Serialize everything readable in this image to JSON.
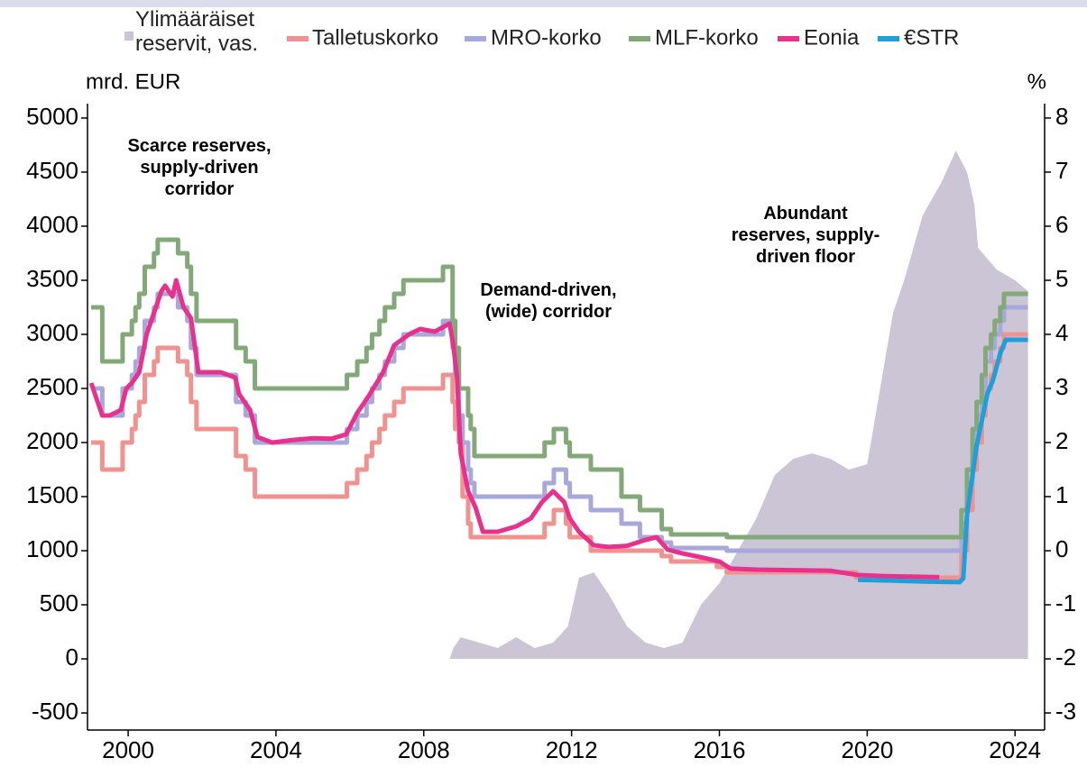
{
  "chart_data": {
    "type": "line",
    "y_label": "mrd. EUR",
    "y2_label": "%",
    "xlim": [
      1998.9,
      2024.8
    ],
    "xticks": [
      2000,
      2004,
      2008,
      2012,
      2016,
      2020,
      2024
    ],
    "ylim": [
      -658,
      5133
    ],
    "yticks": [
      -500,
      0,
      500,
      1000,
      1500,
      2000,
      2500,
      3000,
      3500,
      4000,
      4500,
      5000
    ],
    "y2lim": [
      -3.316,
      8.266
    ],
    "y2ticks": [
      -3,
      -2,
      -1,
      0,
      1,
      2,
      3,
      4,
      5,
      6,
      7,
      8
    ],
    "annotations": [
      [
        "Scarce reserves,",
        "supply-driven",
        "corridor"
      ],
      [
        "Demand-driven,",
        "(wide) corridor"
      ],
      [
        "Abundant",
        "reserves, supply-",
        "driven floor"
      ]
    ],
    "series": [
      {
        "name": "Ylimääräiset reservit, vas.",
        "kind": "area",
        "color": "#cbc5d5",
        "x": [
          1999.0,
          2008.7,
          2008.8,
          2009.0,
          2009.5,
          2010.0,
          2010.5,
          2011.0,
          2011.5,
          2011.9,
          2012.2,
          2012.6,
          2013.0,
          2013.5,
          2014.0,
          2014.5,
          2015.0,
          2015.5,
          2016.0,
          2016.5,
          2017.0,
          2017.5,
          2018.0,
          2018.5,
          2019.0,
          2019.5,
          2020.0,
          2020.3,
          2020.7,
          2021.0,
          2021.5,
          2022.0,
          2022.4,
          2022.7,
          2022.9,
          2023.0,
          2023.5,
          2024.0,
          2024.35
        ],
        "values": [
          0,
          0,
          100,
          200,
          150,
          100,
          200,
          100,
          150,
          300,
          750,
          800,
          600,
          300,
          150,
          100,
          150,
          500,
          700,
          1000,
          1300,
          1700,
          1850,
          1900,
          1850,
          1750,
          1800,
          2400,
          3200,
          3500,
          4100,
          4400,
          4700,
          4500,
          4200,
          3800,
          3600,
          3500,
          3400
        ]
      },
      {
        "name": "Talletuskorko",
        "axis": "y2",
        "step": true,
        "color": "#f0928f",
        "x": [
          1999.0,
          1999.3,
          1999.85,
          2000.1,
          2000.2,
          2000.3,
          2000.45,
          2000.7,
          2000.8,
          2001.35,
          2001.6,
          2001.7,
          2001.85,
          2002.92,
          2003.18,
          2003.43,
          2005.92,
          2006.2,
          2006.45,
          2006.6,
          2006.8,
          2006.95,
          2007.2,
          2007.45,
          2008.52,
          2008.78,
          2008.85,
          2008.95,
          2009.05,
          2009.2,
          2009.27,
          2011.27,
          2011.52,
          2011.85,
          2011.95,
          2012.52,
          2014.44,
          2014.69,
          2015.93,
          2016.2,
          2019.7,
          2022.55,
          2022.7,
          2022.85,
          2022.96,
          2023.1,
          2023.2,
          2023.35,
          2023.45,
          2023.6,
          2023.7,
          2024.35
        ],
        "values": [
          2.0,
          1.5,
          2.0,
          2.25,
          2.5,
          2.75,
          3.25,
          3.5,
          3.75,
          3.5,
          3.25,
          2.75,
          2.25,
          1.75,
          1.5,
          1.0,
          1.25,
          1.5,
          1.75,
          2.0,
          2.25,
          2.5,
          2.75,
          3.0,
          3.25,
          2.75,
          2.25,
          2.0,
          1.0,
          0.5,
          0.25,
          0.5,
          0.75,
          0.5,
          0.25,
          0.0,
          -0.1,
          -0.2,
          -0.3,
          -0.4,
          -0.5,
          0.0,
          0.75,
          1.5,
          2.0,
          2.5,
          3.0,
          3.25,
          3.5,
          3.75,
          4.0,
          4.0
        ]
      },
      {
        "name": "MRO-korko",
        "axis": "y2",
        "step": true,
        "color": "#a6a9d9",
        "x": [
          1999.0,
          1999.3,
          1999.85,
          2000.1,
          2000.2,
          2000.3,
          2000.45,
          2000.7,
          2000.8,
          2001.35,
          2001.6,
          2001.7,
          2001.85,
          2002.92,
          2003.18,
          2003.43,
          2005.92,
          2006.2,
          2006.45,
          2006.6,
          2006.8,
          2006.95,
          2007.2,
          2007.45,
          2008.52,
          2008.78,
          2008.85,
          2008.95,
          2009.05,
          2009.2,
          2009.27,
          2009.37,
          2011.27,
          2011.52,
          2011.85,
          2011.95,
          2012.52,
          2013.35,
          2013.85,
          2014.44,
          2014.69,
          2016.2,
          2022.55,
          2022.7,
          2022.85,
          2022.96,
          2023.1,
          2023.2,
          2023.35,
          2023.45,
          2023.6,
          2023.7,
          2024.35
        ],
        "values": [
          3.0,
          2.5,
          3.0,
          3.25,
          3.5,
          3.75,
          4.25,
          4.5,
          4.75,
          4.5,
          4.25,
          3.75,
          3.25,
          2.75,
          2.5,
          2.0,
          2.25,
          2.5,
          2.75,
          3.0,
          3.25,
          3.5,
          3.75,
          4.0,
          4.25,
          3.75,
          3.25,
          2.5,
          2.0,
          1.5,
          1.25,
          1.0,
          1.25,
          1.5,
          1.25,
          1.0,
          0.75,
          0.5,
          0.25,
          0.15,
          0.05,
          0.0,
          0.5,
          1.25,
          2.0,
          2.5,
          3.0,
          3.5,
          3.75,
          4.0,
          4.25,
          4.5,
          4.5
        ]
      },
      {
        "name": "MLF-korko",
        "axis": "y2",
        "step": true,
        "color": "#83a979",
        "x": [
          1999.0,
          1999.3,
          1999.85,
          2000.1,
          2000.2,
          2000.3,
          2000.45,
          2000.7,
          2000.8,
          2001.35,
          2001.6,
          2001.7,
          2001.85,
          2002.92,
          2003.18,
          2003.43,
          2005.92,
          2006.2,
          2006.45,
          2006.6,
          2006.8,
          2006.95,
          2007.2,
          2007.45,
          2008.52,
          2008.78,
          2008.85,
          2008.95,
          2009.05,
          2009.2,
          2009.27,
          2009.37,
          2011.27,
          2011.52,
          2011.85,
          2011.95,
          2012.52,
          2013.35,
          2013.85,
          2014.44,
          2014.69,
          2016.2,
          2022.55,
          2022.7,
          2022.85,
          2022.96,
          2023.1,
          2023.2,
          2023.35,
          2023.45,
          2023.6,
          2023.7,
          2024.35
        ],
        "values": [
          4.5,
          3.5,
          4.0,
          4.25,
          4.5,
          4.75,
          5.25,
          5.5,
          5.75,
          5.5,
          5.25,
          4.75,
          4.25,
          3.75,
          3.5,
          3.0,
          3.25,
          3.5,
          3.75,
          4.0,
          4.25,
          4.5,
          4.75,
          5.0,
          5.25,
          4.25,
          3.75,
          3.0,
          3.0,
          2.5,
          2.25,
          1.75,
          2.0,
          2.25,
          2.0,
          1.75,
          1.5,
          1.0,
          0.75,
          0.4,
          0.3,
          0.25,
          0.75,
          1.5,
          2.25,
          2.75,
          3.25,
          3.75,
          4.0,
          4.25,
          4.5,
          4.75,
          4.75
        ]
      },
      {
        "name": "Eonia",
        "axis": "y2",
        "color": "#e8318c",
        "x": [
          1999.0,
          1999.1,
          1999.3,
          1999.5,
          1999.8,
          1999.95,
          2000.1,
          2000.3,
          2000.5,
          2000.7,
          2000.9,
          2001.0,
          2001.2,
          2001.3,
          2001.5,
          2001.7,
          2001.8,
          2001.9,
          2002.1,
          2002.5,
          2002.9,
          2003.0,
          2003.3,
          2003.5,
          2003.9,
          2004.5,
          2005.0,
          2005.5,
          2005.9,
          2006.2,
          2006.5,
          2006.9,
          2007.2,
          2007.6,
          2007.9,
          2008.3,
          2008.7,
          2008.8,
          2008.9,
          2009.0,
          2009.2,
          2009.4,
          2009.6,
          2010.0,
          2010.5,
          2010.9,
          2011.2,
          2011.5,
          2011.8,
          2011.95,
          2012.2,
          2012.6,
          2013.0,
          2013.5,
          2014.0,
          2014.3,
          2014.6,
          2015.0,
          2015.5,
          2016.0,
          2016.3,
          2017.0,
          2018.0,
          2019.0,
          2019.75,
          2020.5,
          2021.95
        ],
        "values": [
          3.1,
          2.9,
          2.5,
          2.5,
          2.6,
          3.0,
          3.1,
          3.3,
          4.0,
          4.4,
          4.8,
          4.9,
          4.7,
          5.0,
          4.5,
          4.3,
          3.8,
          3.3,
          3.3,
          3.3,
          3.2,
          2.9,
          2.6,
          2.1,
          2.0,
          2.05,
          2.08,
          2.07,
          2.15,
          2.55,
          2.85,
          3.3,
          3.8,
          4.0,
          4.1,
          4.05,
          4.2,
          3.8,
          3.2,
          1.8,
          1.1,
          0.8,
          0.35,
          0.35,
          0.45,
          0.6,
          0.9,
          1.1,
          0.9,
          0.6,
          0.35,
          0.1,
          0.07,
          0.09,
          0.2,
          0.25,
          0.02,
          -0.05,
          -0.12,
          -0.2,
          -0.33,
          -0.35,
          -0.36,
          -0.37,
          -0.45,
          -0.47,
          -0.49
        ]
      },
      {
        "name": "€STR",
        "axis": "y2",
        "color": "#1ba0dc",
        "x": [
          2019.75,
          2020.5,
          2021.5,
          2022.5,
          2022.6,
          2022.7,
          2022.85,
          2022.95,
          2023.1,
          2023.25,
          2023.4,
          2023.5,
          2023.6,
          2023.75,
          2024.35
        ],
        "values": [
          -0.54,
          -0.55,
          -0.57,
          -0.58,
          -0.51,
          0.66,
          1.4,
          1.9,
          2.4,
          2.9,
          3.15,
          3.4,
          3.65,
          3.9,
          3.9
        ]
      }
    ]
  }
}
